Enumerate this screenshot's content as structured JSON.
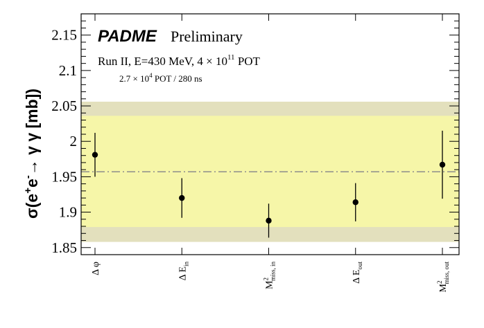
{
  "chart_data": {
    "type": "scatter",
    "title": "",
    "xlabel": "",
    "ylabel": "σ(e⁺e⁻→ γ γ [mb])",
    "ylabel_parts": {
      "prefix": "σ(e",
      "plus": "+",
      "e2": "e",
      "minus": "-",
      "arrow": "→ γ γ [mb])"
    },
    "ylim": [
      1.84,
      2.18
    ],
    "yticks": [
      "1.85",
      "1.9",
      "1.95",
      "2",
      "2.05",
      "2.1",
      "2.15"
    ],
    "categories": [
      {
        "label": "Δ φ",
        "base": "Δ φ",
        "sup": "",
        "sub": ""
      },
      {
        "label": "Δ E_in",
        "base": "Δ E",
        "sup": "",
        "sub": "in"
      },
      {
        "label": "M²_miss, in",
        "base": "M",
        "sup": "2",
        "sub": "miss, in"
      },
      {
        "label": "Δ E_out",
        "base": "Δ E",
        "sup": "",
        "sub": "out"
      },
      {
        "label": "M²_miss, out",
        "base": "M",
        "sup": "2",
        "sub": "miss, out"
      }
    ],
    "values": [
      1.981,
      1.92,
      1.888,
      1.914,
      1.967
    ],
    "errors": [
      0.031,
      0.028,
      0.024,
      0.027,
      0.048
    ],
    "reference_line": 1.957,
    "band_outer": [
      1.858,
      2.056
    ],
    "band_inner": [
      1.879,
      2.036
    ],
    "grid": false,
    "annotations": {
      "experiment": "PADME",
      "status": "Preliminary",
      "run_text": "Run II, E=430 MeV, 4 × 10",
      "run_exp": "11",
      "run_unit": " POT",
      "rate_text": "2.7 × 10",
      "rate_exp": "4",
      "rate_unit": " POT / 280 ns"
    },
    "colors": {
      "band_outer": "#e3e0bd",
      "band_inner": "#f6f6a8",
      "reference": "#8c8c8c",
      "points": "#000000",
      "frame": "#000000"
    }
  }
}
